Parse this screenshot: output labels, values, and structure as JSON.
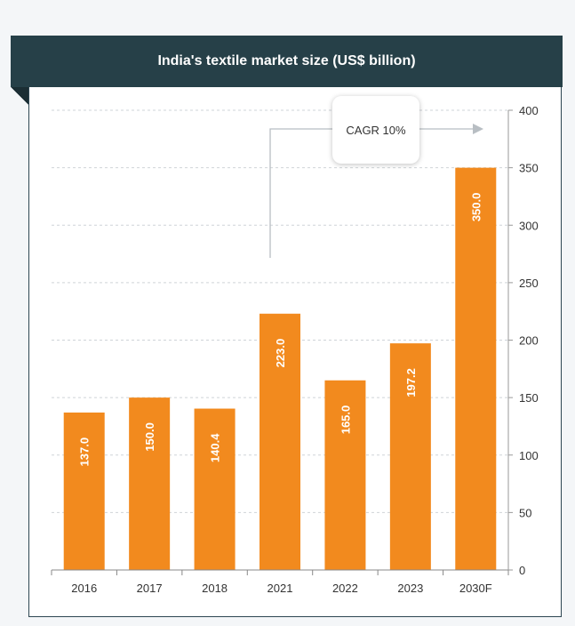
{
  "chart_data": {
    "type": "bar",
    "title": "India's textile market size (US$ billion)",
    "categories": [
      "2016",
      "2017",
      "2018",
      "2021",
      "2022",
      "2023",
      "2030F"
    ],
    "values": [
      137.0,
      150.0,
      140.4,
      223.0,
      165.0,
      197.2,
      350.0
    ],
    "value_labels": [
      "137.0",
      "150.0",
      "140.4",
      "223.0",
      "165.0",
      "197.2",
      "350.0"
    ],
    "y_ticks": [
      0,
      50,
      100,
      150,
      200,
      250,
      300,
      350,
      400
    ],
    "ylim": [
      0,
      400
    ],
    "y_axis_side": "right",
    "grid": true,
    "bar_color": "#f28a1e",
    "annotation": "CAGR 10%"
  },
  "colors": {
    "header_bg": "#264048",
    "bar": "#f28a1e",
    "grid": "#cfd4d8",
    "arrow": "#b8bec3"
  }
}
